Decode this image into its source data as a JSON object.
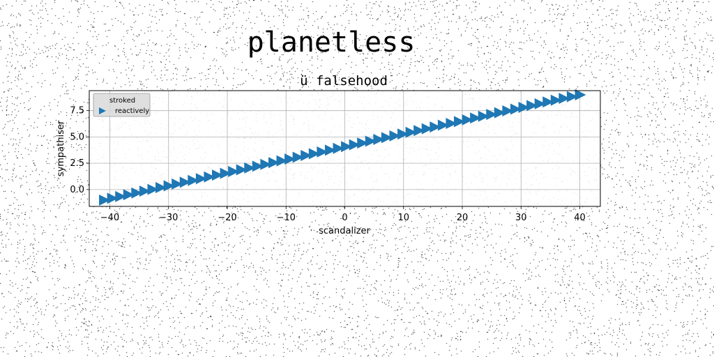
{
  "chart_data": {
    "type": "scatter",
    "title": "planetless",
    "subtitle": "ü falsehood",
    "xlabel": "scandalizer",
    "ylabel": "sympathiser",
    "xlim": [
      -43.5,
      43.5
    ],
    "ylim": [
      -1.6,
      9.4
    ],
    "xticks": [
      -40,
      -30,
      -20,
      -10,
      0,
      10,
      20,
      30,
      40
    ],
    "xtick_labels": [
      "−40",
      "−30",
      "−20",
      "−10",
      "0",
      "10",
      "20",
      "30",
      "40"
    ],
    "yticks": [
      0.0,
      2.5,
      5.0,
      7.5
    ],
    "ytick_labels": [
      "0.0",
      "2.5",
      "5.0",
      "7.5"
    ],
    "grid": true,
    "legend_placement": "upper-left",
    "legend": [
      "stroked",
      "reactively"
    ],
    "series": [
      {
        "name": "stroked",
        "marker": "none",
        "color": "#1f77b4",
        "x": [
          -41,
          40
        ],
        "y": [
          -1.0,
          9.0
        ]
      },
      {
        "name": "reactively",
        "marker": "triangle-right",
        "color": "#1f77b4",
        "x_start": -41,
        "x_end": 40,
        "count": 60,
        "y_start": -1.0,
        "y_end": 9.0
      }
    ]
  }
}
